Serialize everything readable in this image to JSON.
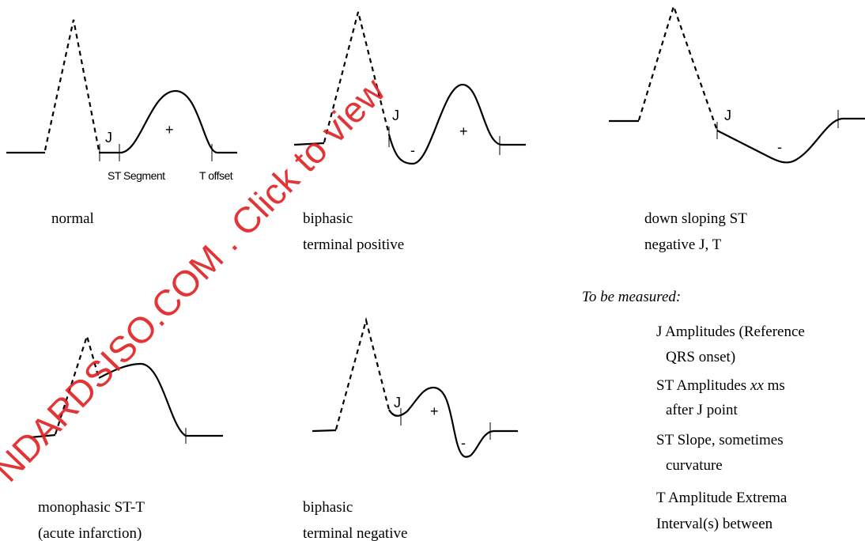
{
  "panels": [
    {
      "labels": [
        "J",
        "+",
        "ST Segment",
        "T offset"
      ],
      "caption": [
        "normal"
      ]
    },
    {
      "labels": [
        "J",
        "-",
        "+"
      ],
      "caption": [
        "biphasic",
        "terminal positive"
      ]
    },
    {
      "labels": [
        "J",
        "-"
      ],
      "caption": [
        "down sloping ST",
        "negative J, T"
      ]
    },
    {
      "labels": [],
      "caption": [
        "monophasic ST-T",
        "(acute infarction)"
      ]
    },
    {
      "labels": [
        "J",
        "+",
        "-"
      ],
      "caption": [
        "biphasic",
        "terminal negative"
      ]
    }
  ],
  "measured": {
    "heading": "To be measured:",
    "items": [
      [
        "J Amplitudes (Reference",
        "QRS onset)"
      ],
      [
        "ST Amplitudes",
        "xx",
        "ms",
        "after J point"
      ],
      [
        "ST Slope, sometimes",
        "curvature"
      ],
      [
        "T Amplitude Extrema"
      ],
      [
        "Interval(s) between"
      ]
    ]
  },
  "watermark": "NDARDSISO.COM . Click to view"
}
